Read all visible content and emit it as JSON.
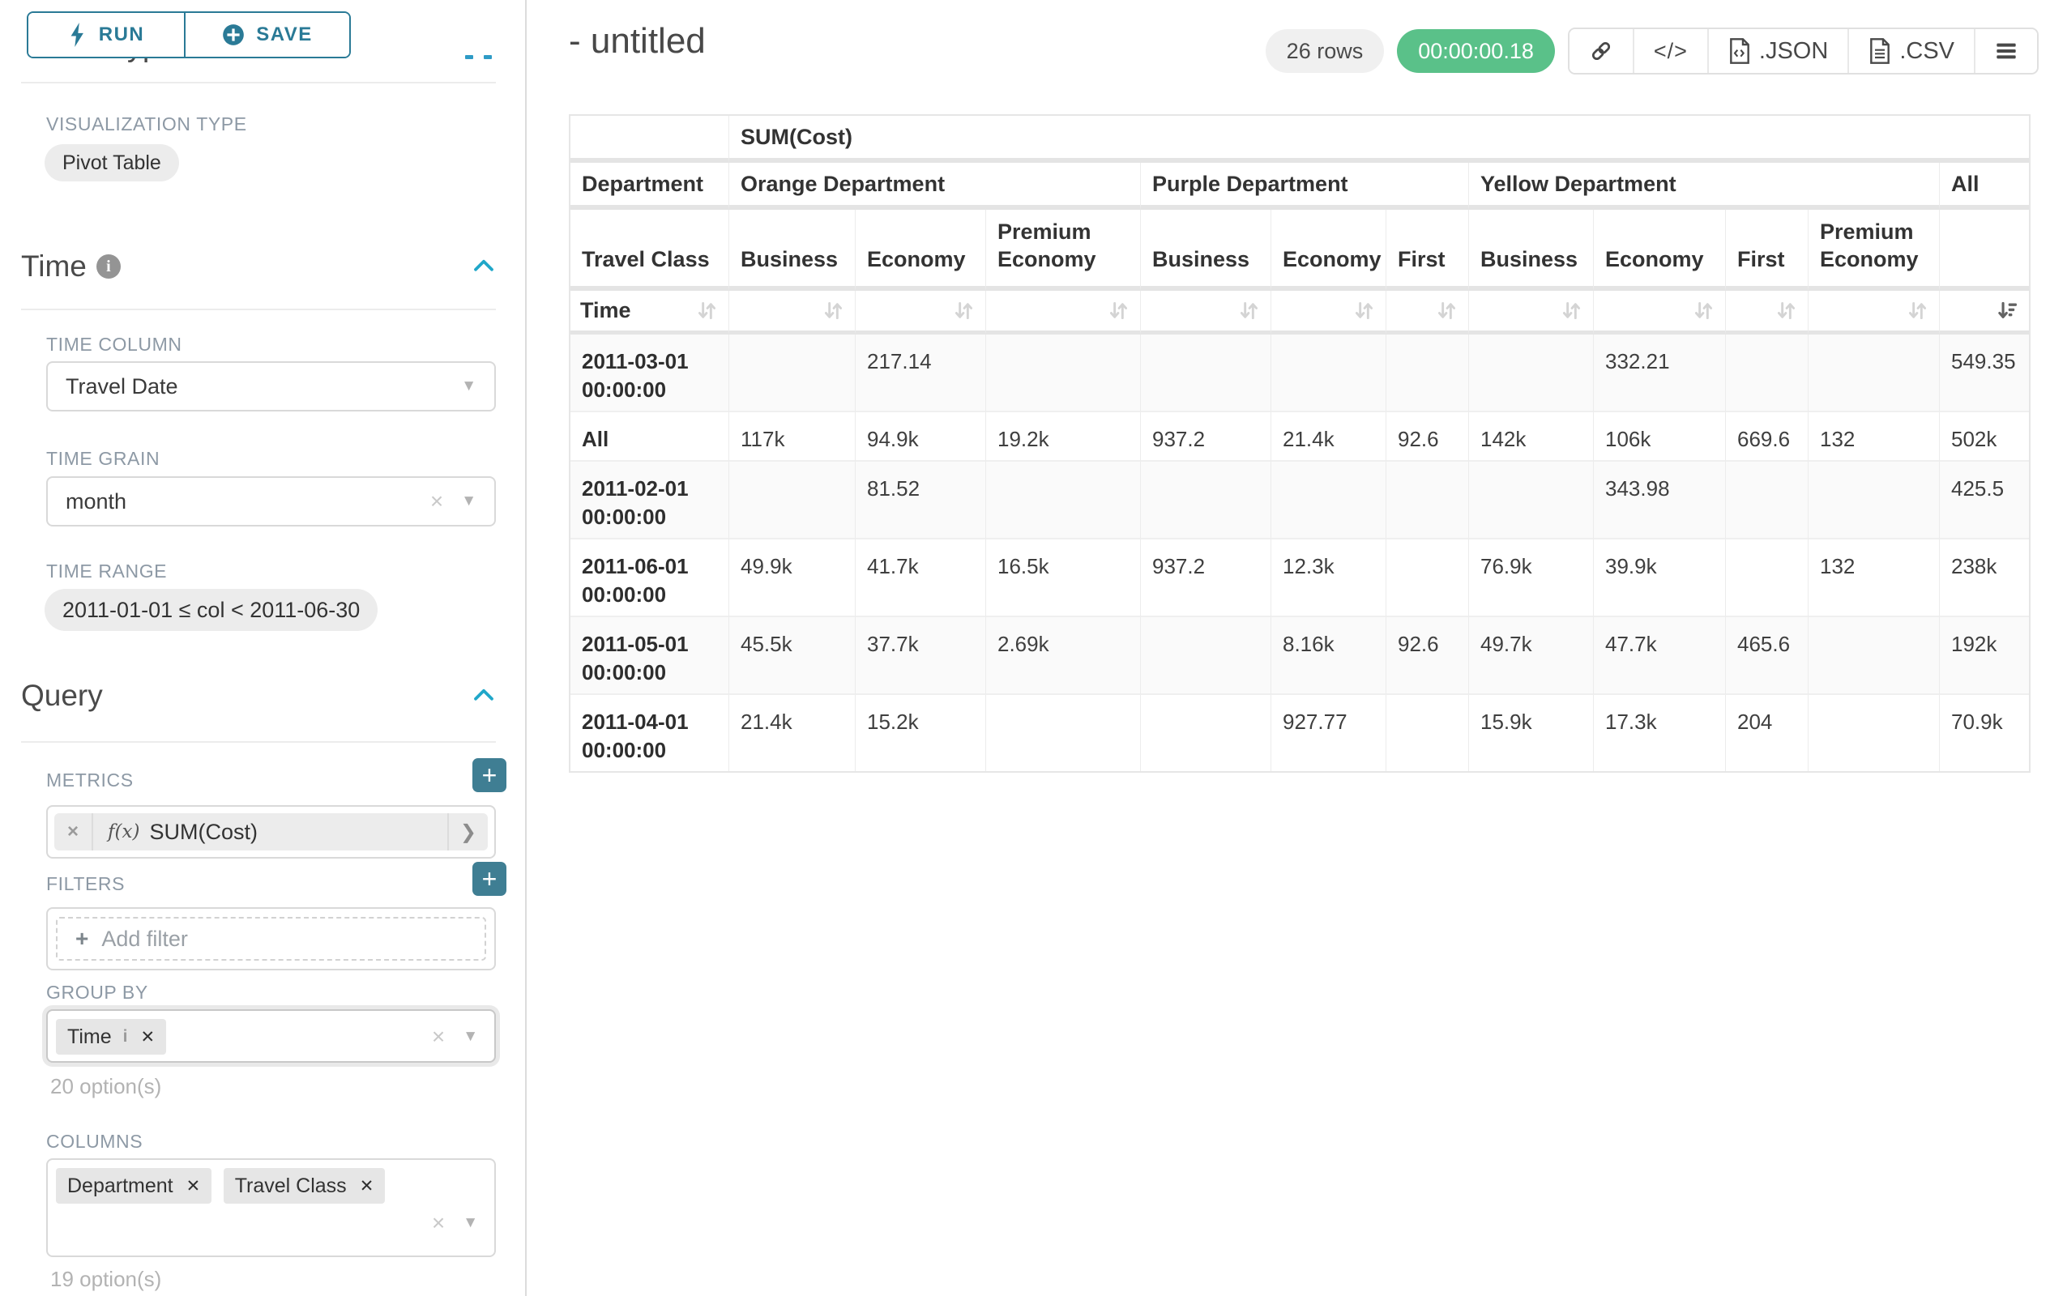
{
  "icons": {
    "caret_down": "▼",
    "clear": "×",
    "plus": "+",
    "chevron_right": "❯",
    "hamburger": "≡"
  },
  "panel": {
    "run_label": "RUN",
    "save_label": "SAVE",
    "chart_type_heading": "Chart Type",
    "viz_type_label": "VISUALIZATION TYPE",
    "viz_type_value": "Pivot Table",
    "time_section_title": "Time",
    "info_glyph": "i",
    "time_column_label": "TIME COLUMN",
    "time_column_value": "Travel Date",
    "time_grain_label": "TIME GRAIN",
    "time_grain_value": "month",
    "time_range_label": "TIME RANGE",
    "time_range_value": "2011-01-01 ≤ col < 2011-06-30",
    "query_section_title": "Query",
    "metrics_label": "METRICS",
    "metric_fx": "f(x)",
    "metric_value": "SUM(Cost)",
    "filters_label": "FILTERS",
    "add_filter_label": "Add filter",
    "group_by_label": "GROUP BY",
    "group_by_tag": "Time",
    "group_by_options": "20 option(s)",
    "columns_label": "COLUMNS",
    "columns_tag_1": "Department",
    "columns_tag_2": "Travel Class",
    "columns_options": "19 option(s)",
    "tag_close": "✕",
    "tag_info": "i"
  },
  "header": {
    "title": "- untitled",
    "rows_badge": "26 rows",
    "timer": "00:00:00.18",
    "json_label": ".JSON",
    "csv_label": ".CSV",
    "code_glyph": "</>"
  },
  "chart_data": {
    "type": "table",
    "metric": "SUM(Cost)",
    "row_dim": "Department",
    "sub_dim": "Travel Class",
    "time_label": "Time",
    "col_groups": [
      {
        "label": "Orange Department",
        "span": 3
      },
      {
        "label": "Purple Department",
        "span": 3
      },
      {
        "label": "Yellow Department",
        "span": 4
      },
      {
        "label": "All",
        "span": 1
      }
    ],
    "sub_cols": [
      "Business",
      "Economy",
      "Premium Economy",
      "Business",
      "Economy",
      "First",
      "Business",
      "Economy",
      "First",
      "Premium Economy",
      ""
    ],
    "sorted_column": "All",
    "sort_direction": "desc",
    "rows": [
      {
        "time": "2011-03-01 00:00:00",
        "values": [
          "",
          "217.14",
          "",
          "",
          "",
          "",
          "",
          "332.21",
          "",
          "",
          "549.35"
        ]
      },
      {
        "time": "All",
        "values": [
          "117k",
          "94.9k",
          "19.2k",
          "937.2",
          "21.4k",
          "92.6",
          "142k",
          "106k",
          "669.6",
          "132",
          "502k"
        ]
      },
      {
        "time": "2011-02-01 00:00:00",
        "values": [
          "",
          "81.52",
          "",
          "",
          "",
          "",
          "",
          "343.98",
          "",
          "",
          "425.5"
        ]
      },
      {
        "time": "2011-06-01 00:00:00",
        "values": [
          "49.9k",
          "41.7k",
          "16.5k",
          "937.2",
          "12.3k",
          "",
          "76.9k",
          "39.9k",
          "",
          "132",
          "238k"
        ]
      },
      {
        "time": "2011-05-01 00:00:00",
        "values": [
          "45.5k",
          "37.7k",
          "2.69k",
          "",
          "8.16k",
          "92.6",
          "49.7k",
          "47.7k",
          "465.6",
          "",
          "192k"
        ]
      },
      {
        "time": "2011-04-01 00:00:00",
        "values": [
          "21.4k",
          "15.2k",
          "",
          "",
          "927.77",
          "",
          "15.9k",
          "17.3k",
          "204",
          "",
          "70.9k"
        ]
      }
    ]
  }
}
